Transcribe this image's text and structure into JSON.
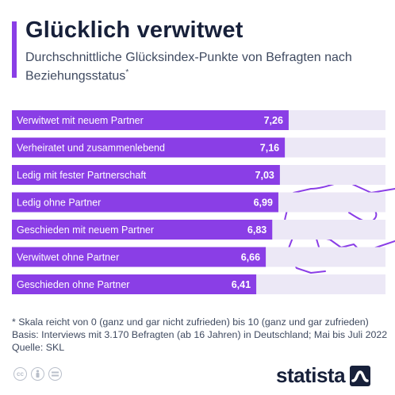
{
  "header": {
    "title": "Glücklich verwitwet",
    "subtitle": "Durchschnittliche Glücksindex-Punkte von Befragten nach Beziehungsstatus",
    "subtitle_mark": "*"
  },
  "chart_data": {
    "type": "bar",
    "orientation": "horizontal",
    "categories": [
      "Verwitwet mit neuem Partner",
      "Verheiratet und zusammenlebend",
      "Ledig mit fester Partnerschaft",
      "Ledig ohne Partner",
      "Geschieden mit neuem Partner",
      "Verwitwet ohne Partner",
      "Geschieden ohne Partner"
    ],
    "values": [
      7.26,
      7.16,
      7.03,
      6.99,
      6.83,
      6.66,
      6.41
    ],
    "value_labels": [
      "7,26",
      "7,16",
      "7,03",
      "6,99",
      "6,83",
      "6,66",
      "6,41"
    ],
    "xlim": [
      0,
      10
    ],
    "bar_color": "#8a3ee6",
    "track_color": "#ece8f6",
    "grid": false
  },
  "footer": {
    "note": "* Skala reicht von 0 (ganz und gar nicht zufrieden) bis 10 (ganz und gar zufrieden)",
    "basis": "Basis: Interviews mit 3.170 Befragten (ab 16 Jahren) in Deutschland; Mai bis Juli 2022",
    "source": "Quelle: SKL",
    "license_icons": [
      "cc-icon",
      "by-icon",
      "nd-icon"
    ],
    "logo": "statista"
  }
}
